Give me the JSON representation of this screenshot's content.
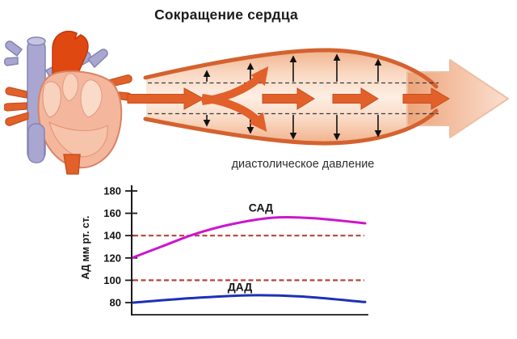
{
  "page": {
    "title": "Сокращение сердца",
    "background_color": "#ffffff"
  },
  "vessel_diagram": {
    "caption": "диастолическое давление",
    "wall_color": "#d4622f",
    "flow_arrow_color": "#e2602a",
    "outflow_arrow_color": "#f3c0a2"
  },
  "chart_data": {
    "type": "line",
    "ylabel": "АД мм рт. ст.",
    "yticks": [
      180,
      160,
      140,
      120,
      100,
      80
    ],
    "ylim": [
      68,
      185
    ],
    "grid": false,
    "axis_color": "#1a1a1a",
    "legend_position": "inline-labels",
    "reference_lines": [
      {
        "value": 140,
        "color": "#b84438",
        "style": "dashed"
      },
      {
        "value": 100,
        "color": "#b84438",
        "style": "dashed"
      }
    ],
    "series": [
      {
        "name": "САД",
        "color": "#cc16cc",
        "points": [
          {
            "fx": 0,
            "v": 120.5
          },
          {
            "fx": 0.12,
            "v": 130
          },
          {
            "fx": 0.26,
            "v": 141
          },
          {
            "fx": 0.42,
            "v": 150
          },
          {
            "fx": 0.6,
            "v": 156
          },
          {
            "fx": 0.78,
            "v": 155.5
          },
          {
            "fx": 1,
            "v": 151
          }
        ],
        "label_anchor": {
          "fx": 0.55,
          "v": 161.5
        }
      },
      {
        "name": "ДАД",
        "color": "#1c31b8",
        "points": [
          {
            "fx": 0,
            "v": 80
          },
          {
            "fx": 0.25,
            "v": 84
          },
          {
            "fx": 0.5,
            "v": 86.5
          },
          {
            "fx": 0.72,
            "v": 85.5
          },
          {
            "fx": 1,
            "v": 80.5
          }
        ],
        "label_anchor": {
          "fx": 0.46,
          "v": 90.5
        }
      }
    ]
  }
}
